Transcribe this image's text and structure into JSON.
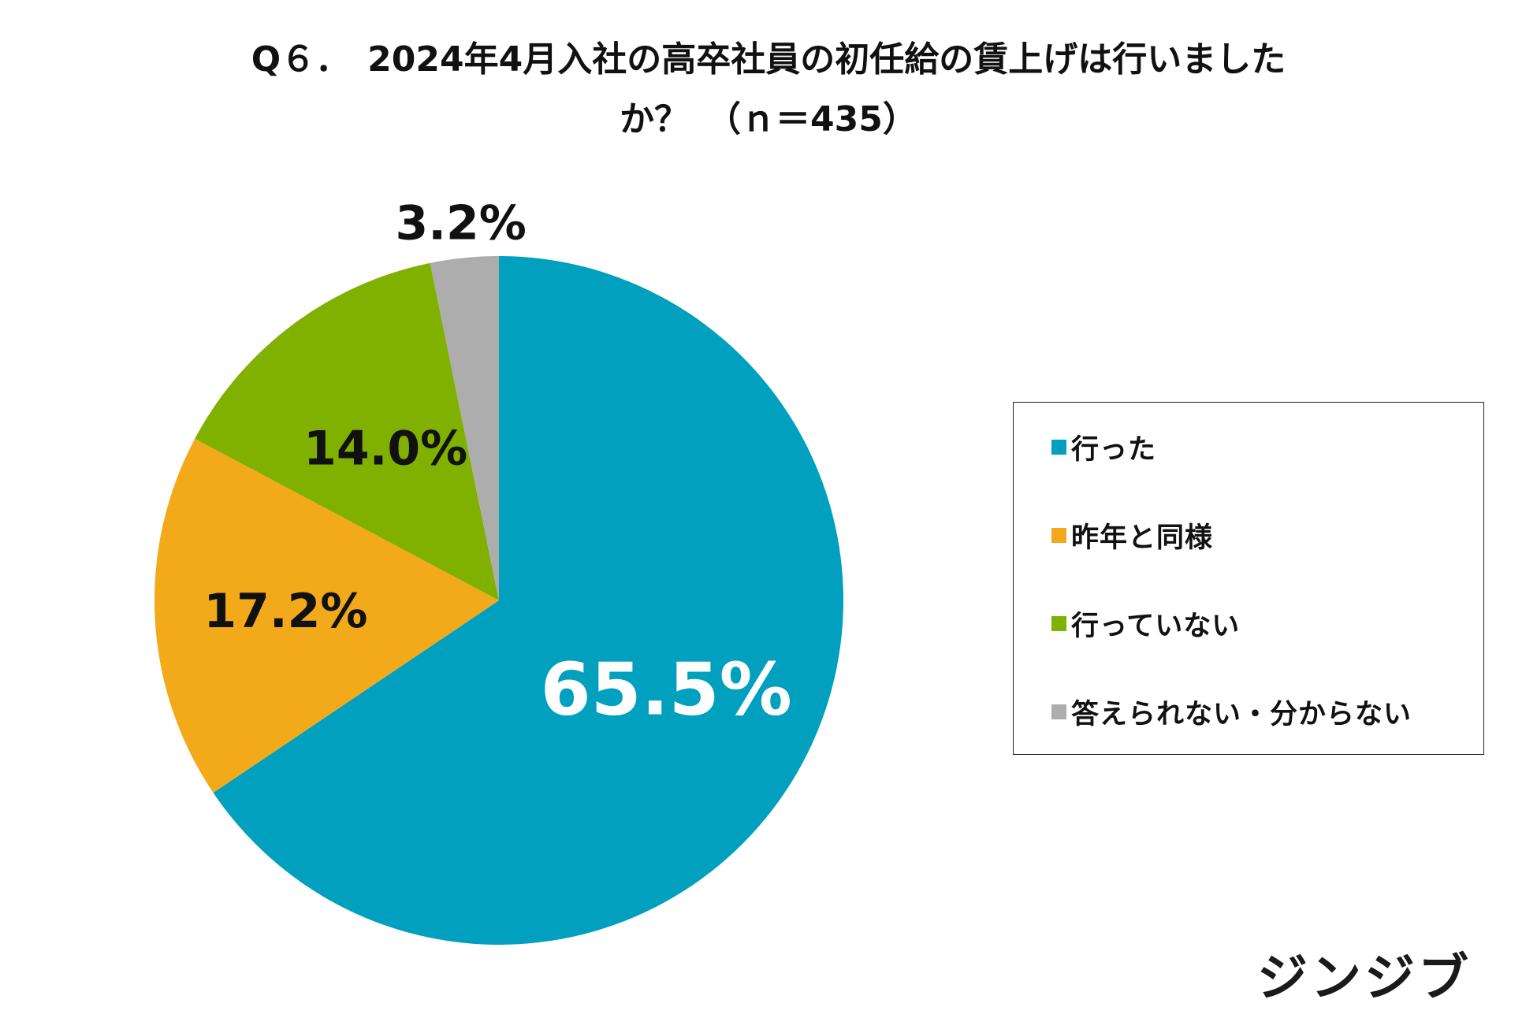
{
  "chart_data": {
    "type": "pie",
    "title_lines": [
      "Q６．　2024年4月入社の高卒社員の初任給の賃上げは行いました",
      "か？　（ｎ＝435）"
    ],
    "categories": [
      "行った",
      "昨年と同様",
      "行っていない",
      "答えられない・分からない"
    ],
    "values": [
      65.5,
      17.2,
      14.0,
      3.2
    ],
    "value_labels": [
      "65.5%",
      "17.2%",
      "14.0%",
      "3.2%"
    ],
    "colors": [
      "#00A0BE",
      "#F2A91A",
      "#80B000",
      "#ADADAD"
    ],
    "label_colors": [
      "#ffffff",
      "#111111",
      "#111111",
      "#111111"
    ],
    "start": "12 o'clock",
    "direction": "clockwise",
    "legend_position": "right"
  },
  "brand": {
    "logo_text": "ジンジブ"
  }
}
